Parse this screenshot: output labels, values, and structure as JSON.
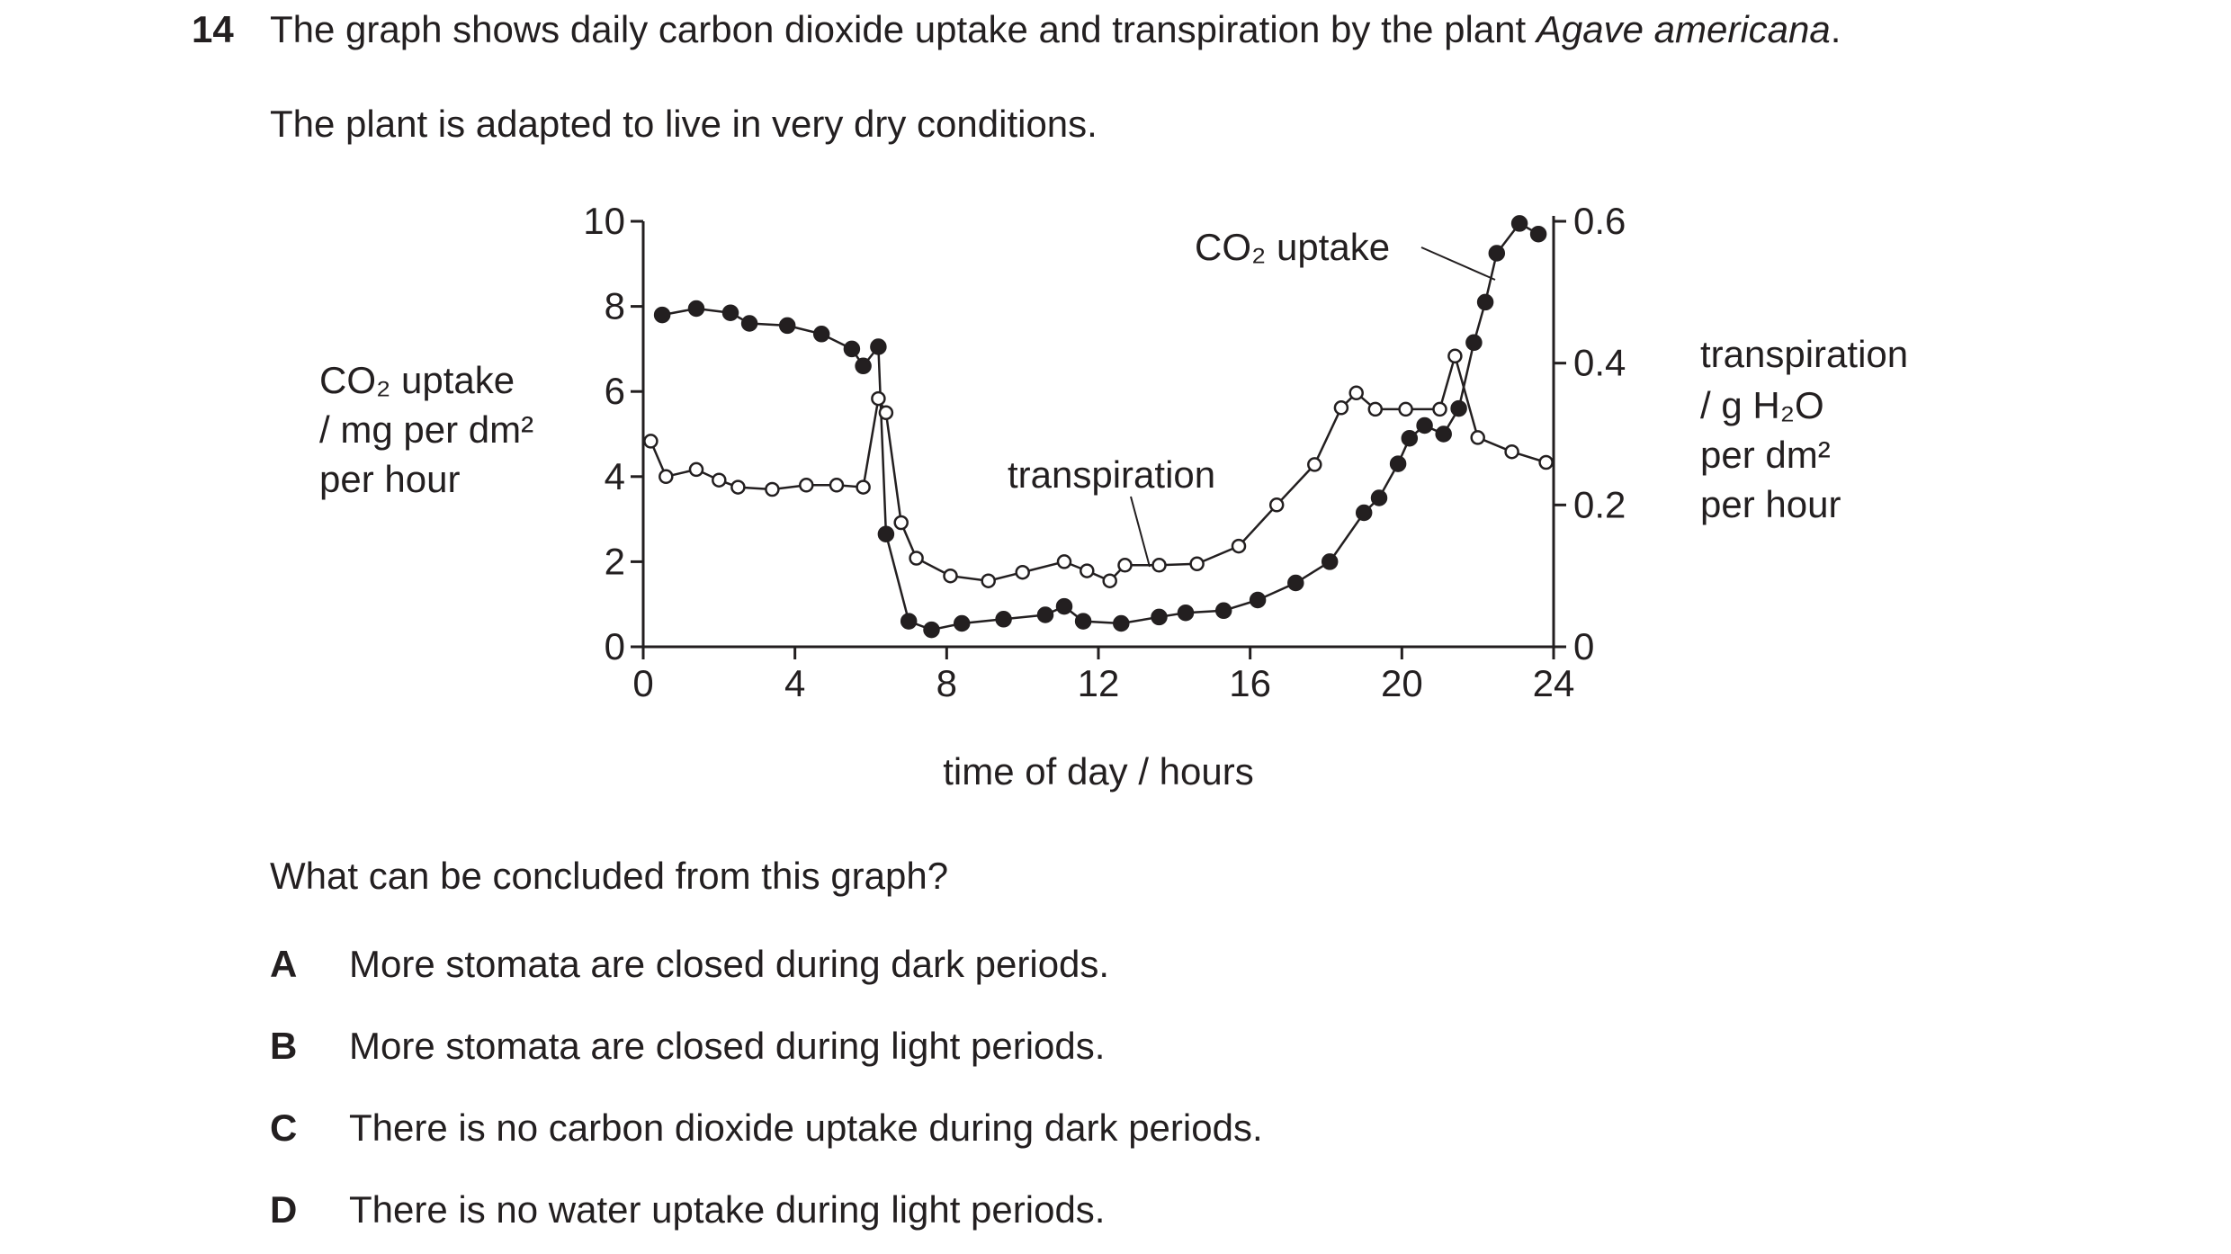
{
  "question": {
    "number": "14",
    "stem_before": "The graph shows daily carbon dioxide uptake and transpiration by the plant ",
    "stem_species": "Agave americana",
    "stem_after": ".",
    "context": "The plant is adapted to live in very dry conditions.",
    "prompt": "What can be concluded from this graph?",
    "options": [
      {
        "letter": "A",
        "text": "More stomata are closed during dark periods."
      },
      {
        "letter": "B",
        "text": "More stomata are closed during light periods."
      },
      {
        "letter": "C",
        "text": "There is no carbon dioxide uptake during dark periods."
      },
      {
        "letter": "D",
        "text": "There is no water uptake during light periods."
      }
    ]
  },
  "chart_data": {
    "type": "line",
    "xlabel": "time of day / hours",
    "x_ticks": [
      0,
      4,
      8,
      12,
      16,
      20,
      24
    ],
    "xlim": [
      0,
      24
    ],
    "y_left": {
      "label_lines": [
        "CO₂ uptake",
        "/ mg per dm²",
        "per hour"
      ],
      "ticks": [
        0,
        2,
        4,
        6,
        8,
        10
      ],
      "lim": [
        0,
        10
      ]
    },
    "y_right": {
      "label_lines": [
        "transpiration",
        "/ g H₂O",
        "per dm²",
        "per hour"
      ],
      "ticks": [
        0,
        0.2,
        0.4,
        0.6
      ],
      "lim": [
        0,
        0.6
      ]
    },
    "annotations": [
      {
        "text": "CO₂ uptake",
        "series": "CO2 uptake"
      },
      {
        "text": "transpiration",
        "series": "transpiration"
      }
    ],
    "series": [
      {
        "name": "CO₂ uptake",
        "axis": "left",
        "marker": "filled",
        "x": [
          0.5,
          1.4,
          2.3,
          2.8,
          3.8,
          4.7,
          5.5,
          5.8,
          6.2,
          6.4,
          7.0,
          7.6,
          8.4,
          9.5,
          10.6,
          11.1,
          11.6,
          12.6,
          13.6,
          14.3,
          15.3,
          16.2,
          17.2,
          18.1,
          19.0,
          19.4,
          19.9,
          20.2,
          20.6,
          21.1,
          21.5,
          21.9,
          22.2,
          22.5,
          23.1,
          23.6
        ],
        "y": [
          7.8,
          7.95,
          7.85,
          7.6,
          7.55,
          7.35,
          7.0,
          6.6,
          7.05,
          2.65,
          0.6,
          0.4,
          0.55,
          0.65,
          0.75,
          0.95,
          0.6,
          0.55,
          0.7,
          0.8,
          0.85,
          1.1,
          1.5,
          2.0,
          3.15,
          3.5,
          4.3,
          4.9,
          5.2,
          5.0,
          5.6,
          7.15,
          8.1,
          9.25,
          9.95,
          9.7
        ]
      },
      {
        "name": "transpiration",
        "axis": "right",
        "marker": "open",
        "x": [
          0.2,
          0.6,
          1.4,
          2.0,
          2.5,
          3.4,
          4.3,
          5.1,
          5.8,
          6.2,
          6.4,
          6.8,
          7.2,
          8.1,
          9.1,
          10.0,
          11.1,
          11.7,
          12.3,
          12.7,
          13.6,
          14.6,
          15.7,
          16.7,
          17.7,
          18.4,
          18.8,
          19.3,
          20.1,
          21.0,
          21.4,
          22.0,
          22.9,
          23.8
        ],
        "y": [
          0.29,
          0.24,
          0.25,
          0.235,
          0.225,
          0.222,
          0.228,
          0.228,
          0.225,
          0.35,
          0.33,
          0.175,
          0.125,
          0.1,
          0.093,
          0.105,
          0.12,
          0.107,
          0.093,
          0.115,
          0.115,
          0.117,
          0.142,
          0.2,
          0.257,
          0.337,
          0.358,
          0.335,
          0.335,
          0.335,
          0.41,
          0.295,
          0.275,
          0.26
        ]
      }
    ]
  }
}
